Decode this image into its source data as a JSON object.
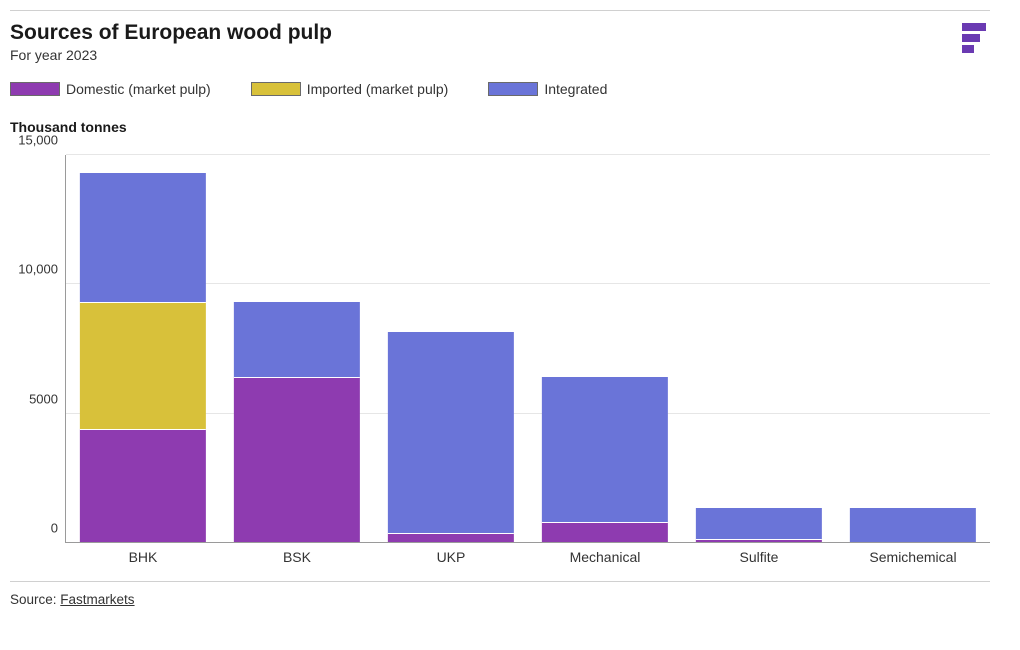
{
  "header": {
    "title": "Sources of European wood pulp",
    "subtitle": "For year 2023"
  },
  "logo": {
    "name": "fastmarkets-logo",
    "bars": [
      {
        "w": 24,
        "h": 8,
        "x": 0
      },
      {
        "w": 18,
        "h": 8,
        "x": 0
      },
      {
        "w": 12,
        "h": 8,
        "x": 0
      }
    ],
    "gap": 3,
    "color": "#6a3ab2"
  },
  "legend": [
    {
      "label": "Domestic (market pulp)",
      "color": "#8e3bb0"
    },
    {
      "label": "Imported (market pulp)",
      "color": "#d8c13a"
    },
    {
      "label": "Integrated",
      "color": "#6a74d8"
    }
  ],
  "yaxis": {
    "label": "Thousand tonnes",
    "min": 0,
    "max": 15000,
    "ticks": [
      {
        "value": 0,
        "label": "0"
      },
      {
        "value": 5000,
        "label": "5000"
      },
      {
        "value": 10000,
        "label": "10,000"
      },
      {
        "value": 15000,
        "label": "15,000"
      }
    ],
    "grid_color": "#e6e6e6",
    "axis_color": "#9a9a9a"
  },
  "chart": {
    "type": "stacked-bar",
    "background_color": "#ffffff",
    "bar_width_pct": 82,
    "segment_divider_color": "#ffffff",
    "categories": [
      {
        "label": "BHK",
        "segments": [
          {
            "series": "Domestic (market pulp)",
            "value": 4400,
            "color": "#8e3bb0"
          },
          {
            "series": "Imported (market pulp)",
            "value": 4900,
            "color": "#d8c13a"
          },
          {
            "series": "Integrated",
            "value": 5000,
            "color": "#6a74d8"
          }
        ]
      },
      {
        "label": "BSK",
        "segments": [
          {
            "series": "Domestic (market pulp)",
            "value": 6400,
            "color": "#8e3bb0"
          },
          {
            "series": "Imported (market pulp)",
            "value": 0,
            "color": "#d8c13a"
          },
          {
            "series": "Integrated",
            "value": 2900,
            "color": "#6a74d8"
          }
        ]
      },
      {
        "label": "UKP",
        "segments": [
          {
            "series": "Domestic (market pulp)",
            "value": 400,
            "color": "#8e3bb0"
          },
          {
            "series": "Imported (market pulp)",
            "value": 0,
            "color": "#d8c13a"
          },
          {
            "series": "Integrated",
            "value": 7750,
            "color": "#6a74d8"
          }
        ]
      },
      {
        "label": "Mechanical",
        "segments": [
          {
            "series": "Domestic (market pulp)",
            "value": 800,
            "color": "#8e3bb0"
          },
          {
            "series": "Imported (market pulp)",
            "value": 0,
            "color": "#d8c13a"
          },
          {
            "series": "Integrated",
            "value": 5600,
            "color": "#6a74d8"
          }
        ]
      },
      {
        "label": "Sulfite",
        "segments": [
          {
            "series": "Domestic (market pulp)",
            "value": 150,
            "color": "#8e3bb0"
          },
          {
            "series": "Imported (market pulp)",
            "value": 0,
            "color": "#d8c13a"
          },
          {
            "series": "Integrated",
            "value": 1200,
            "color": "#6a74d8"
          }
        ]
      },
      {
        "label": "Semichemical",
        "segments": [
          {
            "series": "Domestic (market pulp)",
            "value": 0,
            "color": "#8e3bb0"
          },
          {
            "series": "Imported (market pulp)",
            "value": 0,
            "color": "#d8c13a"
          },
          {
            "series": "Integrated",
            "value": 1350,
            "color": "#6a74d8"
          }
        ]
      }
    ]
  },
  "footer": {
    "source_prefix": "Source: ",
    "source_link_text": "Fastmarkets"
  }
}
